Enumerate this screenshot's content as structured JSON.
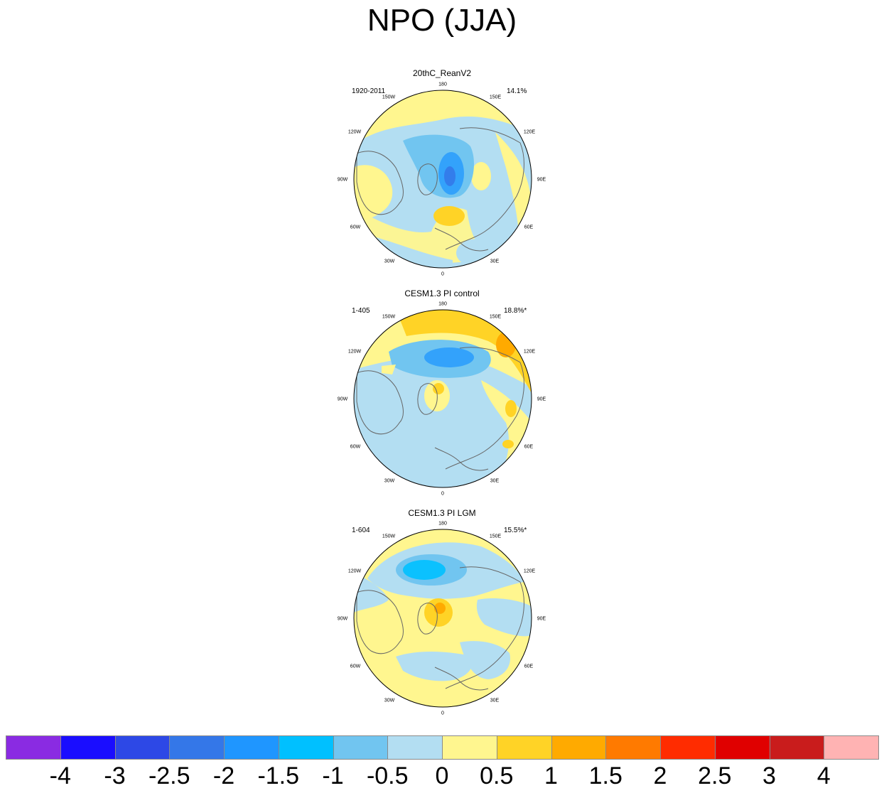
{
  "title": "NPO (JJA)",
  "colors": {
    "neg4": "#8a2be2",
    "neg3": "#1a0dff",
    "neg2_5": "#2d48e6",
    "neg2": "#3477e8",
    "neg1_5": "#1f96ff",
    "neg1": "#00c0ff",
    "neg0_5": "#71c5f0",
    "neg0": "#b3def2",
    "pos0": "#fff68f",
    "pos0_5": "#ffd326",
    "pos1": "#ffaa00",
    "pos1_5": "#ff7a00",
    "pos2": "#ff2c00",
    "pos2_5": "#e00000",
    "pos3": "#c91c1c",
    "pos4": "#ffb3b3",
    "coast": "#666666",
    "border": "#000000"
  },
  "longitude_labels": [
    "180",
    "150E",
    "120E",
    "90E",
    "60E",
    "30E",
    "0",
    "30W",
    "60W",
    "90W",
    "120W",
    "150W"
  ],
  "panels": [
    {
      "title": "20thC_ReanV2",
      "years": "1920-2011",
      "percent": "14.1%"
    },
    {
      "title": "CESM1.3 PI control",
      "years": "1-405",
      "percent": "18.8%*"
    },
    {
      "title": "CESM1.3 PI LGM",
      "years": "1-604",
      "percent": "15.5%*"
    }
  ],
  "colorbar": {
    "labels": [
      "-4",
      "-3",
      "-2.5",
      "-2",
      "-1.5",
      "-1",
      "-0.5",
      "0",
      "0.5",
      "1",
      "1.5",
      "2",
      "2.5",
      "3",
      "4"
    ],
    "box_colors": [
      "#8a2be2",
      "#1a0dff",
      "#2d48e6",
      "#3477e8",
      "#1f96ff",
      "#00c0ff",
      "#71c5f0",
      "#b3def2",
      "#fff68f",
      "#ffd326",
      "#ffaa00",
      "#ff7a00",
      "#ff2c00",
      "#e00000",
      "#c91c1c",
      "#ffb3b3"
    ]
  }
}
